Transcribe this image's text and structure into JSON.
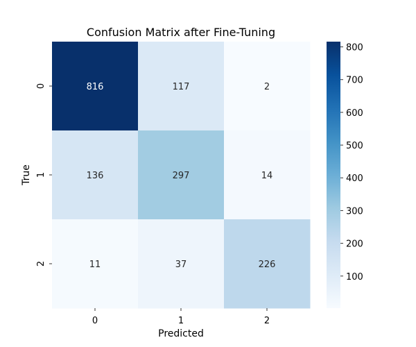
{
  "chart_data": {
    "type": "heatmap",
    "title": "Confusion Matrix after Fine-Tuning",
    "xlabel": "Predicted",
    "ylabel": "True",
    "x_categories": [
      "0",
      "1",
      "2"
    ],
    "y_categories": [
      "0",
      "1",
      "2"
    ],
    "values": [
      [
        816,
        117,
        2
      ],
      [
        136,
        297,
        14
      ],
      [
        11,
        37,
        226
      ]
    ],
    "colormap": "Blues",
    "color_range": [
      2,
      816
    ],
    "colorbar_ticks": [
      "100",
      "200",
      "300",
      "400",
      "500",
      "600",
      "700",
      "800"
    ],
    "colorbar_tick_values": [
      100,
      200,
      300,
      400,
      500,
      600,
      700,
      800
    ],
    "colors": {
      "light": "#f7fbff",
      "dark": "#08306b",
      "text_on_dark": "#ffffff",
      "text_on_light": "#262626"
    }
  }
}
